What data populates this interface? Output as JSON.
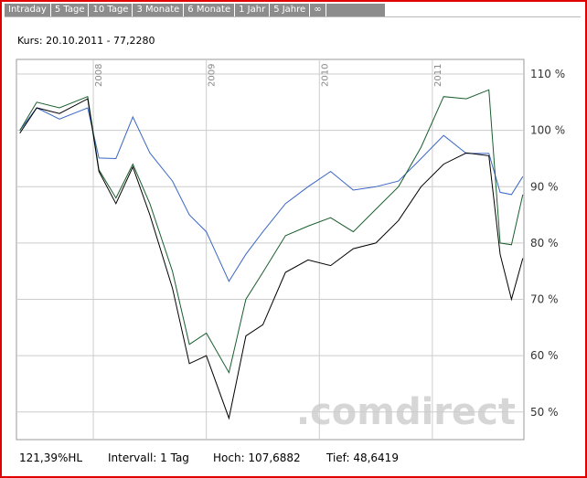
{
  "tabs": [
    "Intraday",
    "5 Tage",
    "10 Tage",
    "3 Monate",
    "6 Monate",
    "1 Jahr",
    "5 Jahre",
    "∞"
  ],
  "footer": [
    "121,39%HL",
    "Intervall: 1 Tag",
    "Hoch: 107,6882",
    "Tief: 48,6419"
  ],
  "chart_data": {
    "type": "line",
    "title": "Kurs: 20.10.2011 - 77,2280",
    "watermark": ".comdirect",
    "x": [
      2007.35,
      2007.5,
      2007.7,
      2007.95,
      2008.05,
      2008.2,
      2008.35,
      2008.5,
      2008.7,
      2008.85,
      2009.0,
      2009.2,
      2009.35,
      2009.5,
      2009.7,
      2009.9,
      2010.1,
      2010.3,
      2010.5,
      2010.7,
      2010.9,
      2011.1,
      2011.3,
      2011.5,
      2011.6,
      2011.7,
      2011.8
    ],
    "series": [
      {
        "color": "#000000",
        "values": [
          99.5,
          104,
          103,
          105.6,
          92.7,
          87,
          93.5,
          85,
          72,
          58.6,
          60,
          48.9,
          63.5,
          65.5,
          74.8,
          77,
          76,
          79,
          80,
          84,
          90,
          94,
          96,
          95.5,
          78,
          70,
          77.3
        ]
      },
      {
        "color": "#1a5e2e",
        "values": [
          100,
          105,
          104,
          106,
          93,
          88,
          94,
          87,
          75,
          62,
          64,
          57,
          70,
          74.8,
          81.3,
          83,
          84.5,
          82,
          86,
          90,
          97,
          106,
          105.6,
          107.2,
          80,
          79.7,
          88.6
        ]
      },
      {
        "color": "#3a66c4",
        "values": [
          100,
          104,
          102,
          104,
          95.1,
          95,
          102.4,
          96,
          91,
          85,
          82,
          73.2,
          78,
          82,
          87,
          90,
          92.7,
          89.4,
          90,
          91,
          95,
          99.1,
          95.9,
          95.9,
          89,
          88.6,
          91.8
        ]
      }
    ],
    "xlim": [
      2007.32,
      2011.81
    ],
    "xticks": [
      2008,
      2009,
      2010,
      2011
    ],
    "ylim": [
      45.1,
      112.6
    ],
    "yticks": [
      {
        "value": 50,
        "label": "50 %"
      },
      {
        "value": 60,
        "label": "60 %"
      },
      {
        "value": 70,
        "label": "70 %"
      },
      {
        "value": 80,
        "label": "80 %"
      },
      {
        "value": 90,
        "label": "90 %"
      },
      {
        "value": 100,
        "label": "100 %"
      },
      {
        "value": 110,
        "label": "110 %"
      }
    ],
    "grid": true,
    "y_axis_side": "right"
  }
}
